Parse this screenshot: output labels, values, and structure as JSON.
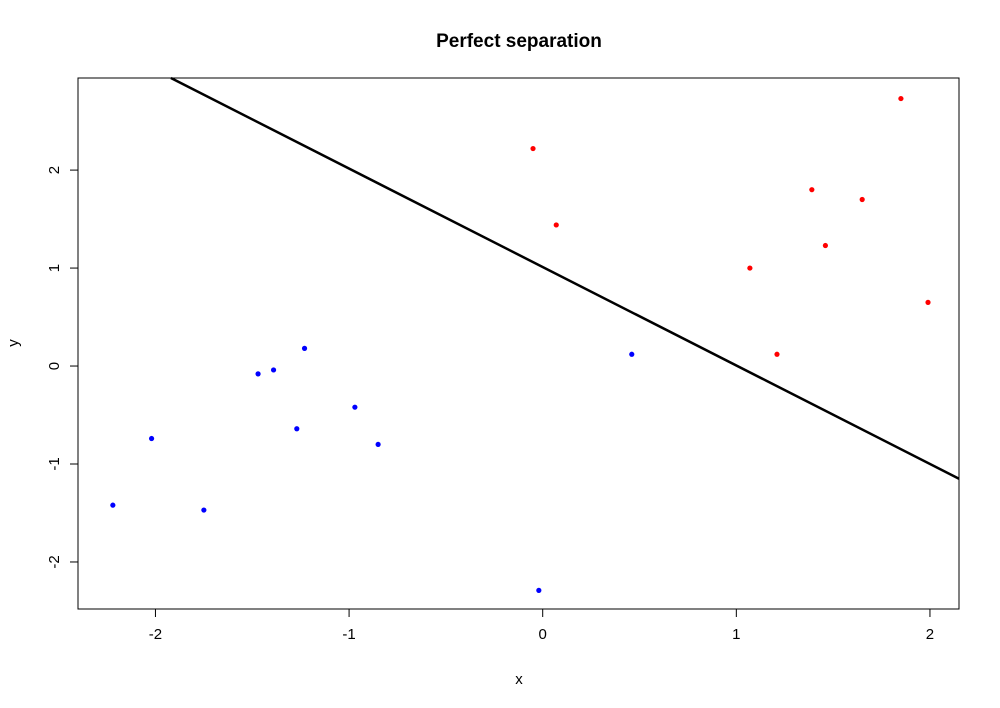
{
  "chart_data": {
    "type": "scatter",
    "title": "Perfect separation",
    "xlabel": "x",
    "ylabel": "y",
    "xlim": [
      -2.4,
      2.15
    ],
    "ylim": [
      -2.48,
      2.94
    ],
    "x_ticks": [
      -2,
      -1,
      0,
      1,
      2
    ],
    "x_tick_labels": [
      "-2",
      "-1",
      "0",
      "1",
      "2"
    ],
    "y_ticks": [
      -2,
      -1,
      0,
      1,
      2
    ],
    "y_tick_labels": [
      "-2",
      "-1",
      "0",
      "1",
      "2"
    ],
    "grid": false,
    "legend": null,
    "series": [
      {
        "color": "#0000ff",
        "points": [
          {
            "x": -2.22,
            "y": -1.42
          },
          {
            "x": -2.02,
            "y": -0.74
          },
          {
            "x": -1.75,
            "y": -1.47
          },
          {
            "x": -1.47,
            "y": -0.08
          },
          {
            "x": -1.39,
            "y": -0.04
          },
          {
            "x": -1.27,
            "y": -0.64
          },
          {
            "x": -1.23,
            "y": 0.18
          },
          {
            "x": -0.97,
            "y": -0.42
          },
          {
            "x": -0.85,
            "y": -0.8
          },
          {
            "x": -0.02,
            "y": -2.29
          },
          {
            "x": 0.46,
            "y": 0.12
          }
        ]
      },
      {
        "color": "#ff0000",
        "points": [
          {
            "x": -0.05,
            "y": 2.22
          },
          {
            "x": 0.07,
            "y": 1.44
          },
          {
            "x": 1.07,
            "y": 1.0
          },
          {
            "x": 1.21,
            "y": 0.12
          },
          {
            "x": 1.39,
            "y": 1.8
          },
          {
            "x": 1.46,
            "y": 1.23
          },
          {
            "x": 1.65,
            "y": 1.7
          },
          {
            "x": 1.85,
            "y": 2.73
          },
          {
            "x": 1.99,
            "y": 0.65
          }
        ]
      }
    ],
    "lines": [
      {
        "color": "#000000",
        "from": {
          "x": -1.92,
          "y": 2.94
        },
        "to": {
          "x": 2.15,
          "y": -1.15
        }
      }
    ]
  }
}
